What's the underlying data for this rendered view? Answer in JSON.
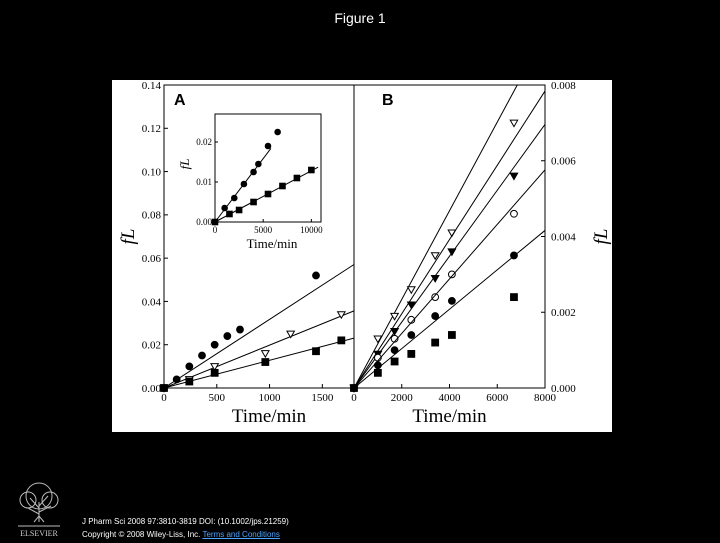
{
  "page": {
    "title": "Figure 1"
  },
  "footer": {
    "publisher": "ELSEVIER",
    "citation": "J Pharm Sci 2008 97:3810-3819 DOI: (10.1002/jps.21259)",
    "copyright": "Copyright © 2008 Wiley-Liss, Inc.",
    "terms_link": "Terms and Conditions"
  },
  "chart_data": [
    {
      "panel": "A",
      "type": "scatter",
      "xlabel": "Time/min",
      "ylabel": "fL",
      "xlim": [
        0,
        1800
      ],
      "ylim": [
        0,
        0.14
      ],
      "xticks": [
        0,
        500,
        1000,
        1500
      ],
      "yticks": [
        0.0,
        0.02,
        0.04,
        0.06,
        0.08,
        0.1,
        0.12,
        0.14
      ],
      "xtick_labels": [
        "0",
        "500",
        "1000",
        "1500"
      ],
      "ytick_labels": [
        "0.00",
        "0.02",
        "0.04",
        "0.06",
        "0.08",
        "0.10",
        "0.12",
        "0.14"
      ],
      "series": [
        {
          "marker": "filled-circle",
          "fit_slope": 3.17e-05,
          "x": [
            0,
            120,
            240,
            360,
            480,
            600,
            720,
            1440
          ],
          "y": [
            0,
            0.004,
            0.01,
            0.015,
            0.02,
            0.024,
            0.027,
            0.052
          ]
        },
        {
          "marker": "open-triangle-down",
          "fit_slope": 1.98e-05,
          "x": [
            0,
            240,
            480,
            960,
            1200,
            1680
          ],
          "y": [
            0,
            0.004,
            0.01,
            0.016,
            0.025,
            0.034
          ]
        },
        {
          "marker": "filled-square",
          "fit_slope": 1.28e-05,
          "x": [
            0,
            240,
            480,
            960,
            1440,
            1680
          ],
          "y": [
            0,
            0.003,
            0.007,
            0.012,
            0.017,
            0.022
          ]
        }
      ],
      "inset": {
        "xlabel": "Time/min",
        "ylabel": "fL",
        "xlim": [
          0,
          11000
        ],
        "ylim": [
          0,
          0.027
        ],
        "xticks": [
          0,
          5000,
          10000
        ],
        "yticks": [
          0.0,
          0.01,
          0.02
        ],
        "xtick_labels": [
          "0",
          "5000",
          "10000"
        ],
        "ytick_labels": [
          "0.00",
          "0.01",
          "0.02"
        ],
        "series": [
          {
            "marker": "filled-circle",
            "fit_slope": 3.17e-06,
            "x": [
              0,
              1000,
              2000,
              3000,
              4000,
              4500,
              5500,
              6500
            ],
            "y": [
              0,
              0.0035,
              0.006,
              0.0095,
              0.0125,
              0.0145,
              0.019,
              0.0225
            ]
          },
          {
            "marker": "filled-square",
            "fit_slope": 1.28e-06,
            "x": [
              0,
              1500,
              2500,
              4000,
              5500,
              7000,
              8500,
              10000
            ],
            "y": [
              0,
              0.002,
              0.003,
              0.005,
              0.007,
              0.009,
              0.011,
              0.013
            ]
          }
        ]
      }
    },
    {
      "panel": "B",
      "type": "scatter",
      "xlabel": "Time/min",
      "ylabel": "fL",
      "y_axis_side": "right",
      "xlim": [
        0,
        8000
      ],
      "ylim": [
        0,
        0.008
      ],
      "xticks": [
        0,
        2000,
        4000,
        6000,
        8000
      ],
      "yticks": [
        0.0,
        0.002,
        0.004,
        0.006,
        0.008
      ],
      "xtick_labels": [
        "0",
        "2000",
        "4000",
        "6000",
        "8000"
      ],
      "ytick_labels": [
        "0.000",
        "0.002",
        "0.004",
        "0.006",
        "0.008"
      ],
      "series": [
        {
          "marker": "open-triangle-down",
          "fit_slope": 1.17e-06,
          "x": [
            0,
            1000,
            1700,
            2400,
            3400,
            4100,
            6700
          ],
          "y": [
            0,
            0.0013,
            0.0019,
            0.0026,
            0.0035,
            0.0041,
            0.007
          ]
        },
        {
          "marker": "filled-triangle-down",
          "fit_slope": 9.8e-07,
          "x": [
            0,
            1000,
            1700,
            2400,
            3400,
            4100,
            6700
          ],
          "y": [
            0,
            0.0009,
            0.0015,
            0.0022,
            0.0029,
            0.0036,
            0.0056
          ]
        },
        {
          "marker": "open-circle",
          "fit_slope": 8.7e-07,
          "x": [
            0,
            1000,
            1700,
            2400,
            3400,
            4100,
            6700
          ],
          "y": [
            0,
            0.0008,
            0.0013,
            0.0018,
            0.0024,
            0.003,
            0.0046
          ]
        },
        {
          "marker": "filled-circle",
          "fit_slope": 7.2e-07,
          "x": [
            0,
            1000,
            1700,
            2400,
            3400,
            4100,
            6700
          ],
          "y": [
            0,
            0.0006,
            0.001,
            0.0014,
            0.0019,
            0.0023,
            0.0035
          ]
        },
        {
          "marker": "filled-square",
          "fit_slope": 5.2e-07,
          "x": [
            0,
            1000,
            1700,
            2400,
            3400,
            4100,
            6700
          ],
          "y": [
            0,
            0.0004,
            0.0007,
            0.0009,
            0.0012,
            0.0014,
            0.0024
          ]
        }
      ]
    }
  ]
}
